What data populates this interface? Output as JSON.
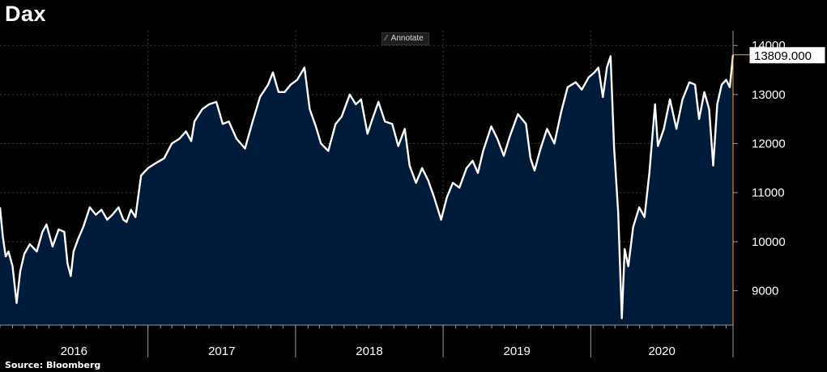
{
  "title": "Dax",
  "source": "Source: Bloomberg",
  "toolbar": {
    "annotate_label": "Annotate",
    "annotate_icon": "pen-icon"
  },
  "colors": {
    "background": "#000000",
    "area_fill": "#001a3a",
    "line": "#ffffff",
    "grid": "#3a3a3a",
    "last_marker": "#f5a623"
  },
  "chart_data": {
    "type": "area",
    "title": "Dax",
    "ylim": [
      8300,
      14300
    ],
    "y_ticks": [
      9000,
      10000,
      11000,
      12000,
      13000,
      14000
    ],
    "x_tick_labels": [
      "2016",
      "2017",
      "2018",
      "2019",
      "2020"
    ],
    "xlim": [
      "2016-01-01",
      "2020-12-18"
    ],
    "last_value_label": "13809.000",
    "grid": true,
    "series": [
      {
        "values": [
          [
            "2016-01-01",
            10700
          ],
          [
            "2016-01-08",
            10100
          ],
          [
            "2016-01-15",
            9700
          ],
          [
            "2016-01-22",
            9800
          ],
          [
            "2016-02-01",
            9500
          ],
          [
            "2016-02-11",
            8750
          ],
          [
            "2016-02-20",
            9400
          ],
          [
            "2016-03-01",
            9750
          ],
          [
            "2016-03-15",
            9950
          ],
          [
            "2016-04-01",
            9800
          ],
          [
            "2016-04-15",
            10200
          ],
          [
            "2016-04-25",
            10350
          ],
          [
            "2016-05-10",
            9900
          ],
          [
            "2016-05-25",
            10250
          ],
          [
            "2016-06-08",
            10200
          ],
          [
            "2016-06-16",
            9550
          ],
          [
            "2016-06-24",
            9300
          ],
          [
            "2016-07-01",
            9800
          ],
          [
            "2016-07-12",
            10050
          ],
          [
            "2016-07-25",
            10300
          ],
          [
            "2016-08-10",
            10700
          ],
          [
            "2016-08-25",
            10550
          ],
          [
            "2016-09-08",
            10650
          ],
          [
            "2016-09-22",
            10450
          ],
          [
            "2016-10-05",
            10550
          ],
          [
            "2016-10-20",
            10700
          ],
          [
            "2016-11-01",
            10450
          ],
          [
            "2016-11-09",
            10400
          ],
          [
            "2016-11-20",
            10650
          ],
          [
            "2016-12-01",
            10500
          ],
          [
            "2016-12-15",
            11350
          ],
          [
            "2017-01-01",
            11500
          ],
          [
            "2017-01-20",
            11600
          ],
          [
            "2017-02-10",
            11700
          ],
          [
            "2017-03-01",
            12000
          ],
          [
            "2017-03-20",
            12100
          ],
          [
            "2017-04-05",
            12250
          ],
          [
            "2017-04-18",
            12050
          ],
          [
            "2017-04-26",
            12450
          ],
          [
            "2017-05-15",
            12700
          ],
          [
            "2017-06-01",
            12800
          ],
          [
            "2017-06-19",
            12850
          ],
          [
            "2017-07-05",
            12400
          ],
          [
            "2017-07-20",
            12450
          ],
          [
            "2017-08-08",
            12100
          ],
          [
            "2017-08-29",
            11900
          ],
          [
            "2017-09-15",
            12400
          ],
          [
            "2017-10-05",
            12950
          ],
          [
            "2017-10-25",
            13200
          ],
          [
            "2017-11-06",
            13450
          ],
          [
            "2017-11-20",
            13050
          ],
          [
            "2017-12-05",
            13050
          ],
          [
            "2017-12-20",
            13200
          ],
          [
            "2018-01-05",
            13300
          ],
          [
            "2018-01-23",
            13550
          ],
          [
            "2018-02-05",
            12700
          ],
          [
            "2018-02-20",
            12350
          ],
          [
            "2018-03-05",
            12000
          ],
          [
            "2018-03-23",
            11850
          ],
          [
            "2018-04-10",
            12400
          ],
          [
            "2018-04-25",
            12550
          ],
          [
            "2018-05-15",
            13000
          ],
          [
            "2018-05-30",
            12800
          ],
          [
            "2018-06-12",
            12900
          ],
          [
            "2018-06-28",
            12200
          ],
          [
            "2018-07-10",
            12500
          ],
          [
            "2018-07-25",
            12850
          ],
          [
            "2018-08-10",
            12450
          ],
          [
            "2018-08-28",
            12400
          ],
          [
            "2018-09-12",
            11950
          ],
          [
            "2018-09-28",
            12300
          ],
          [
            "2018-10-10",
            11550
          ],
          [
            "2018-10-26",
            11200
          ],
          [
            "2018-11-10",
            11500
          ],
          [
            "2018-11-25",
            11250
          ],
          [
            "2018-12-10",
            10900
          ],
          [
            "2018-12-27",
            10450
          ],
          [
            "2019-01-10",
            10900
          ],
          [
            "2019-01-25",
            11200
          ],
          [
            "2019-02-10",
            11100
          ],
          [
            "2019-02-28",
            11500
          ],
          [
            "2019-03-15",
            11650
          ],
          [
            "2019-03-28",
            11400
          ],
          [
            "2019-04-10",
            11850
          ],
          [
            "2019-04-30",
            12350
          ],
          [
            "2019-05-15",
            12100
          ],
          [
            "2019-05-31",
            11750
          ],
          [
            "2019-06-15",
            12150
          ],
          [
            "2019-07-05",
            12600
          ],
          [
            "2019-07-25",
            12400
          ],
          [
            "2019-08-05",
            11700
          ],
          [
            "2019-08-15",
            11450
          ],
          [
            "2019-08-30",
            11900
          ],
          [
            "2019-09-15",
            12300
          ],
          [
            "2019-10-03",
            12000
          ],
          [
            "2019-10-20",
            12650
          ],
          [
            "2019-11-05",
            13150
          ],
          [
            "2019-11-25",
            13250
          ],
          [
            "2019-12-10",
            13100
          ],
          [
            "2019-12-27",
            13350
          ],
          [
            "2020-01-10",
            13450
          ],
          [
            "2020-01-20",
            13550
          ],
          [
            "2020-01-31",
            12950
          ],
          [
            "2020-02-10",
            13550
          ],
          [
            "2020-02-19",
            13780
          ],
          [
            "2020-02-28",
            11900
          ],
          [
            "2020-03-09",
            10600
          ],
          [
            "2020-03-18",
            8440
          ],
          [
            "2020-03-25",
            9850
          ],
          [
            "2020-04-03",
            9500
          ],
          [
            "2020-04-15",
            10300
          ],
          [
            "2020-04-30",
            10700
          ],
          [
            "2020-05-13",
            10500
          ],
          [
            "2020-05-25",
            11400
          ],
          [
            "2020-06-08",
            12800
          ],
          [
            "2020-06-15",
            11950
          ],
          [
            "2020-06-30",
            12300
          ],
          [
            "2020-07-15",
            12900
          ],
          [
            "2020-07-31",
            12300
          ],
          [
            "2020-08-15",
            12900
          ],
          [
            "2020-09-01",
            13250
          ],
          [
            "2020-09-15",
            13200
          ],
          [
            "2020-09-25",
            12500
          ],
          [
            "2020-10-08",
            13050
          ],
          [
            "2020-10-20",
            12700
          ],
          [
            "2020-10-30",
            11550
          ],
          [
            "2020-11-09",
            12800
          ],
          [
            "2020-11-20",
            13200
          ],
          [
            "2020-12-01",
            13300
          ],
          [
            "2020-12-10",
            13150
          ],
          [
            "2020-12-18",
            13809
          ]
        ]
      }
    ]
  }
}
